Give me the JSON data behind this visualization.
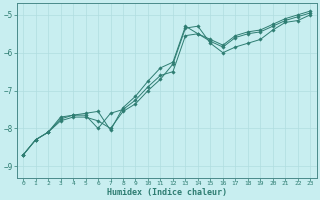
{
  "xlabel": "Humidex (Indice chaleur)",
  "ylabel": "",
  "background_color": "#c8eef0",
  "grid_color": "#b0dde0",
  "line_color": "#2e7d72",
  "xlim": [
    -0.5,
    23.5
  ],
  "ylim": [
    -9.3,
    -4.7
  ],
  "yticks": [
    -9,
    -8,
    -7,
    -6,
    -5
  ],
  "xticks": [
    0,
    1,
    2,
    3,
    4,
    5,
    6,
    7,
    8,
    9,
    10,
    11,
    12,
    13,
    14,
    15,
    16,
    17,
    18,
    19,
    20,
    21,
    22,
    23
  ],
  "series1_x": [
    0,
    1,
    2,
    3,
    4,
    5,
    6,
    7,
    8,
    9,
    10,
    11,
    12,
    13,
    14,
    15,
    16,
    17,
    18,
    19,
    20,
    21,
    22,
    23
  ],
  "series1_y": [
    -8.7,
    -8.3,
    -8.1,
    -7.8,
    -7.7,
    -7.7,
    -7.8,
    -8.0,
    -7.55,
    -7.35,
    -7.0,
    -6.7,
    -6.3,
    -5.35,
    -5.3,
    -5.75,
    -6.0,
    -5.85,
    -5.75,
    -5.65,
    -5.4,
    -5.2,
    -5.15,
    -5.0
  ],
  "series2_x": [
    0,
    1,
    2,
    3,
    4,
    5,
    6,
    7,
    8,
    9,
    10,
    11,
    12,
    13,
    14,
    15,
    16,
    17,
    18,
    19,
    20,
    21,
    22,
    23
  ],
  "series2_y": [
    -8.7,
    -8.3,
    -8.1,
    -7.75,
    -7.65,
    -7.65,
    -8.0,
    -7.6,
    -7.5,
    -7.25,
    -6.9,
    -6.6,
    -6.5,
    -5.55,
    -5.5,
    -5.7,
    -5.85,
    -5.6,
    -5.5,
    -5.45,
    -5.3,
    -5.15,
    -5.05,
    -4.95
  ],
  "series3_x": [
    0,
    1,
    2,
    3,
    4,
    5,
    6,
    7,
    8,
    9,
    10,
    11,
    12,
    13,
    14,
    15,
    16,
    17,
    18,
    19,
    20,
    21,
    22,
    23
  ],
  "series3_y": [
    -8.7,
    -8.3,
    -8.1,
    -7.7,
    -7.65,
    -7.6,
    -7.55,
    -8.05,
    -7.45,
    -7.15,
    -6.75,
    -6.4,
    -6.25,
    -5.3,
    -5.5,
    -5.65,
    -5.8,
    -5.55,
    -5.45,
    -5.4,
    -5.25,
    -5.1,
    -5.0,
    -4.9
  ]
}
